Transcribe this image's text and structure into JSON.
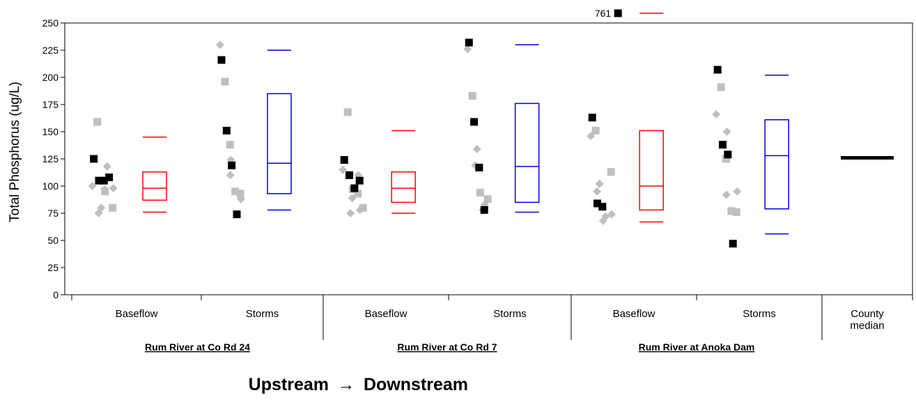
{
  "chart_data": {
    "type": "scatter",
    "title": "",
    "ylabel": "Total Phosphorus (ug/L)",
    "ylim": [
      0,
      250
    ],
    "yticks": [
      0,
      25,
      50,
      75,
      100,
      125,
      150,
      175,
      200,
      225,
      250
    ],
    "grid": false,
    "footer": {
      "left": "Upstream",
      "arrow": "→",
      "right": "Downstream"
    },
    "outlier": {
      "label": "761",
      "value": 761
    },
    "colors": {
      "gray": "#bfbfbf",
      "black": "#000000",
      "baseflow_box": "#ff0000",
      "storm_box": "#0000dd"
    },
    "groups": [
      {
        "site": "Rum River at Co Rd 24",
        "label": "Baseflow",
        "box_color": "red",
        "box": {
          "min": 76,
          "q1": 87,
          "median": 98,
          "q3": 113,
          "max": 145
        },
        "gray_diamonds": [
          100,
          80,
          75,
          118,
          97,
          98
        ],
        "gray_squares": [
          159,
          95,
          80
        ],
        "black_squares": [
          125,
          105,
          105,
          108
        ]
      },
      {
        "site": "Rum River at Co Rd 24",
        "label": "Storms",
        "box_color": "blue",
        "box": {
          "min": 78,
          "q1": 93,
          "median": 121,
          "q3": 185,
          "max": 225
        },
        "gray_diamonds": [
          230,
          124,
          110,
          88
        ],
        "gray_squares": [
          196,
          138,
          95,
          93
        ],
        "black_squares": [
          216,
          151,
          119,
          74
        ]
      },
      {
        "site": "Rum River at Co Rd 7",
        "label": "Baseflow",
        "box_color": "red",
        "box": {
          "min": 75,
          "q1": 85,
          "median": 98,
          "q3": 113,
          "max": 151
        },
        "gray_diamonds": [
          115,
          89,
          75,
          78,
          110
        ],
        "gray_squares": [
          168,
          97,
          93,
          80
        ],
        "black_squares": [
          124,
          110,
          98,
          105
        ]
      },
      {
        "site": "Rum River at Co Rd 7",
        "label": "Storms",
        "box_color": "blue",
        "box": {
          "min": 76,
          "q1": 85,
          "median": 118,
          "q3": 176,
          "max": 230
        },
        "gray_diamonds": [
          226,
          134,
          119,
          83,
          78
        ],
        "gray_squares": [
          183,
          94,
          88
        ],
        "black_squares": [
          232,
          159,
          117,
          78
        ]
      },
      {
        "site": "Rum River at Anoka Dam",
        "label": "Baseflow",
        "box_color": "red",
        "box": {
          "min": 67,
          "q1": 78,
          "median": 100,
          "q3": 151,
          "max": 761
        },
        "gray_diamonds": [
          146,
          102,
          95,
          72,
          68,
          74
        ],
        "gray_squares": [
          151,
          113
        ],
        "black_squares": [
          163,
          84,
          81,
          761
        ]
      },
      {
        "site": "Rum River at Anoka Dam",
        "label": "Storms",
        "box_color": "blue",
        "box": {
          "min": 56,
          "q1": 79,
          "median": 128,
          "q3": 161,
          "max": 202
        },
        "gray_diamonds": [
          166,
          150,
          92,
          95
        ],
        "gray_squares": [
          191,
          125,
          77,
          76
        ],
        "black_squares": [
          207,
          138,
          129,
          47
        ]
      }
    ],
    "county_median": {
      "label": "County median",
      "label_lines": [
        "County",
        "median"
      ],
      "value": 126
    },
    "sites": [
      "Rum River at Co Rd 24",
      "Rum River at Co Rd 7",
      "Rum River at Anoka Dam"
    ]
  }
}
